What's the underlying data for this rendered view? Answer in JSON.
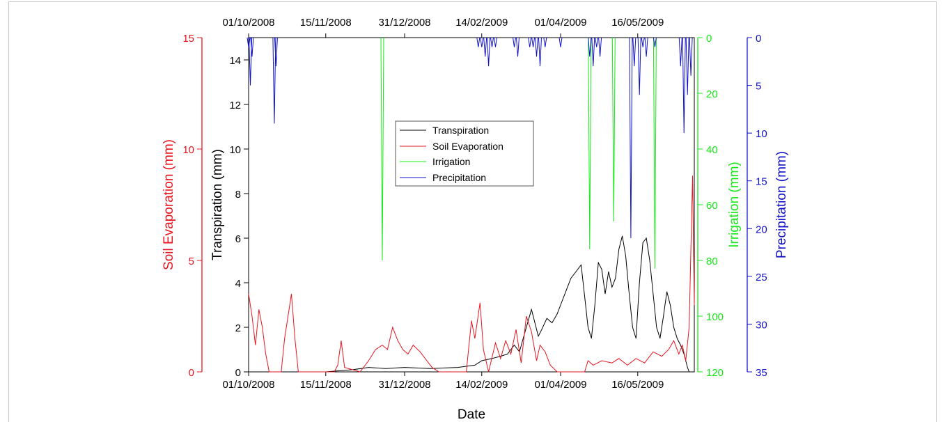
{
  "chart_data": {
    "type": "line",
    "title": "",
    "xlabel": "Date",
    "x_tick_labels": [
      "01/10/2008",
      "15/11/2008",
      "31/12/2008",
      "14/02/2009",
      "01/04/2009",
      "16/05/2009"
    ],
    "x_range": [
      "2008-10-01",
      "2009-06-18"
    ],
    "axes": {
      "transpiration": {
        "label": "Transpiration (mm)",
        "range": [
          0,
          15
        ],
        "ticks": [
          0,
          2,
          4,
          6,
          8,
          10,
          12,
          14
        ],
        "color": "#000000",
        "side": "left-inner"
      },
      "soil_evaporation": {
        "label": "Soil Evaporation (mm)",
        "range": [
          0,
          15
        ],
        "ticks": [
          0,
          5,
          10,
          15
        ],
        "color": "#e8141e",
        "side": "left-outer"
      },
      "irrigation": {
        "label": "Irrigation (mm)",
        "range": [
          0,
          120
        ],
        "ticks": [
          0,
          20,
          40,
          60,
          80,
          100,
          120
        ],
        "color": "#18e818",
        "side": "right-inner",
        "inverted": true
      },
      "precipitation": {
        "label": "Precipitation (mm)",
        "range": [
          0,
          35
        ],
        "ticks": [
          0,
          5,
          10,
          15,
          20,
          25,
          30,
          35
        ],
        "color": "#1010c8",
        "side": "right-outer",
        "inverted": true
      }
    },
    "legend": {
      "position": "center",
      "entries": [
        "Transpiration",
        "Soil Evaporation",
        "Irrigation",
        "Precipitation"
      ]
    },
    "series": [
      {
        "name": "Transpiration",
        "axis": "transpiration",
        "color": "#000000",
        "points": [
          [
            "2008-10-01",
            0
          ],
          [
            "2008-11-15",
            0
          ],
          [
            "2008-12-01",
            0.1
          ],
          [
            "2008-12-10",
            0.2
          ],
          [
            "2008-12-20",
            0.15
          ],
          [
            "2008-12-31",
            0.2
          ],
          [
            "2009-01-15",
            0.15
          ],
          [
            "2009-01-31",
            0.2
          ],
          [
            "2009-02-10",
            0.3
          ],
          [
            "2009-02-14",
            0.5
          ],
          [
            "2009-02-20",
            0.6
          ],
          [
            "2009-02-25",
            0.7
          ],
          [
            "2009-03-01",
            0.8
          ],
          [
            "2009-03-05",
            1.2
          ],
          [
            "2009-03-08",
            0.9
          ],
          [
            "2009-03-12",
            2.0
          ],
          [
            "2009-03-15",
            2.8
          ],
          [
            "2009-03-17",
            2.2
          ],
          [
            "2009-03-19",
            1.6
          ],
          [
            "2009-03-21",
            1.9
          ],
          [
            "2009-03-24",
            2.4
          ],
          [
            "2009-03-27",
            2.2
          ],
          [
            "2009-03-30",
            2.6
          ],
          [
            "2009-04-01",
            3.0
          ],
          [
            "2009-04-04",
            3.6
          ],
          [
            "2009-04-07",
            4.2
          ],
          [
            "2009-04-10",
            4.5
          ],
          [
            "2009-04-13",
            4.8
          ],
          [
            "2009-04-15",
            3.4
          ],
          [
            "2009-04-17",
            2.0
          ],
          [
            "2009-04-19",
            1.5
          ],
          [
            "2009-04-21",
            3.0
          ],
          [
            "2009-04-23",
            4.9
          ],
          [
            "2009-04-25",
            4.6
          ],
          [
            "2009-04-27",
            3.5
          ],
          [
            "2009-04-29",
            4.5
          ],
          [
            "2009-05-01",
            3.8
          ],
          [
            "2009-05-03",
            4.2
          ],
          [
            "2009-05-05",
            5.5
          ],
          [
            "2009-05-07",
            6.1
          ],
          [
            "2009-05-09",
            5.2
          ],
          [
            "2009-05-11",
            3.5
          ],
          [
            "2009-05-13",
            2.0
          ],
          [
            "2009-05-15",
            1.5
          ],
          [
            "2009-05-17",
            4.0
          ],
          [
            "2009-05-19",
            5.8
          ],
          [
            "2009-05-21",
            6.0
          ],
          [
            "2009-05-23",
            5.0
          ],
          [
            "2009-05-25",
            3.5
          ],
          [
            "2009-05-27",
            2.0
          ],
          [
            "2009-05-29",
            1.5
          ],
          [
            "2009-05-31",
            2.5
          ],
          [
            "2009-06-02",
            3.6
          ],
          [
            "2009-06-04",
            3.0
          ],
          [
            "2009-06-06",
            2.0
          ],
          [
            "2009-06-08",
            1.5
          ],
          [
            "2009-06-10",
            1.2
          ],
          [
            "2009-06-12",
            0.8
          ],
          [
            "2009-06-14",
            0.2
          ],
          [
            "2009-06-15",
            0
          ]
        ]
      },
      {
        "name": "Soil Evaporation",
        "axis": "soil_evaporation",
        "color": "#e8141e",
        "points": [
          [
            "2008-10-01",
            3.5
          ],
          [
            "2008-10-03",
            2.5
          ],
          [
            "2008-10-05",
            1.2
          ],
          [
            "2008-10-07",
            2.8
          ],
          [
            "2008-10-09",
            2.0
          ],
          [
            "2008-10-11",
            0.8
          ],
          [
            "2008-10-13",
            0
          ],
          [
            "2008-10-20",
            0
          ],
          [
            "2008-10-22",
            1.5
          ],
          [
            "2008-10-24",
            2.5
          ],
          [
            "2008-10-26",
            3.5
          ],
          [
            "2008-10-28",
            1.5
          ],
          [
            "2008-10-30",
            0
          ],
          [
            "2008-11-20",
            0
          ],
          [
            "2008-11-22",
            0.3
          ],
          [
            "2008-11-24",
            1.4
          ],
          [
            "2008-11-26",
            0.2
          ],
          [
            "2008-12-05",
            0
          ],
          [
            "2008-12-10",
            0.5
          ],
          [
            "2008-12-14",
            1.0
          ],
          [
            "2008-12-18",
            1.2
          ],
          [
            "2008-12-21",
            1.0
          ],
          [
            "2008-12-24",
            2.0
          ],
          [
            "2008-12-27",
            1.4
          ],
          [
            "2008-12-30",
            1.0
          ],
          [
            "2009-01-02",
            0.8
          ],
          [
            "2009-01-05",
            1.2
          ],
          [
            "2009-01-09",
            0.9
          ],
          [
            "2009-01-13",
            0.5
          ],
          [
            "2009-01-16",
            0.2
          ],
          [
            "2009-01-20",
            0
          ],
          [
            "2009-02-05",
            0
          ],
          [
            "2009-02-08",
            2.3
          ],
          [
            "2009-02-10",
            1.5
          ],
          [
            "2009-02-13",
            3.1
          ],
          [
            "2009-02-15",
            1.0
          ],
          [
            "2009-02-18",
            0
          ],
          [
            "2009-02-22",
            1.3
          ],
          [
            "2009-02-25",
            0.6
          ],
          [
            "2009-02-28",
            1.4
          ],
          [
            "2009-03-03",
            0.8
          ],
          [
            "2009-03-06",
            1.9
          ],
          [
            "2009-03-09",
            0.4
          ],
          [
            "2009-03-12",
            2.5
          ],
          [
            "2009-03-15",
            1.8
          ],
          [
            "2009-03-18",
            0.5
          ],
          [
            "2009-03-20",
            1.2
          ],
          [
            "2009-03-23",
            0.9
          ],
          [
            "2009-03-26",
            0.3
          ],
          [
            "2009-03-30",
            0
          ],
          [
            "2009-04-15",
            0
          ],
          [
            "2009-04-17",
            0.5
          ],
          [
            "2009-04-20",
            0.3
          ],
          [
            "2009-04-25",
            0.5
          ],
          [
            "2009-05-01",
            0.4
          ],
          [
            "2009-05-05",
            0.6
          ],
          [
            "2009-05-10",
            0.3
          ],
          [
            "2009-05-15",
            0.6
          ],
          [
            "2009-05-20",
            0.4
          ],
          [
            "2009-05-25",
            0.9
          ],
          [
            "2009-05-30",
            0.7
          ],
          [
            "2009-06-03",
            1.0
          ],
          [
            "2009-06-06",
            1.4
          ],
          [
            "2009-06-09",
            0.8
          ],
          [
            "2009-06-11",
            1.2
          ],
          [
            "2009-06-13",
            0.5
          ],
          [
            "2009-06-15",
            2.0
          ],
          [
            "2009-06-16",
            5.5
          ],
          [
            "2009-06-17",
            8.8
          ],
          [
            "2009-06-18",
            3.0
          ]
        ]
      },
      {
        "name": "Irrigation",
        "axis": "irrigation",
        "color": "#18e818",
        "events": [
          [
            "2008-12-18",
            80
          ],
          [
            "2009-04-18",
            76
          ],
          [
            "2009-05-02",
            66
          ],
          [
            "2009-05-26",
            83
          ]
        ]
      },
      {
        "name": "Precipitation",
        "axis": "precipitation",
        "color": "#1010c8",
        "events": [
          [
            "2008-10-01",
            1
          ],
          [
            "2008-10-02",
            5
          ],
          [
            "2008-10-03",
            2
          ],
          [
            "2008-10-16",
            9
          ],
          [
            "2008-10-17",
            3
          ],
          [
            "2009-02-12",
            1
          ],
          [
            "2009-02-14",
            1
          ],
          [
            "2009-02-16",
            2
          ],
          [
            "2009-02-18",
            3
          ],
          [
            "2009-02-20",
            1
          ],
          [
            "2009-02-22",
            1
          ],
          [
            "2009-03-05",
            1
          ],
          [
            "2009-03-07",
            2
          ],
          [
            "2009-03-14",
            1
          ],
          [
            "2009-03-16",
            1
          ],
          [
            "2009-03-18",
            2
          ],
          [
            "2009-03-20",
            3
          ],
          [
            "2009-03-23",
            1
          ],
          [
            "2009-04-01",
            1
          ],
          [
            "2009-04-18",
            2
          ],
          [
            "2009-04-20",
            3
          ],
          [
            "2009-04-22",
            1
          ],
          [
            "2009-04-24",
            2
          ],
          [
            "2009-05-12",
            21
          ],
          [
            "2009-05-14",
            3
          ],
          [
            "2009-05-17",
            6
          ],
          [
            "2009-05-19",
            1
          ],
          [
            "2009-05-21",
            2
          ],
          [
            "2009-05-26",
            1
          ],
          [
            "2009-06-10",
            3
          ],
          [
            "2009-06-12",
            10
          ],
          [
            "2009-06-14",
            6
          ],
          [
            "2009-06-16",
            4
          ]
        ]
      }
    ]
  }
}
